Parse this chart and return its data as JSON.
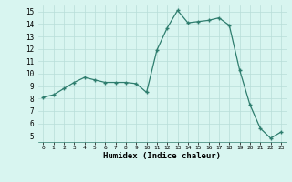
{
  "x": [
    0,
    1,
    2,
    3,
    4,
    5,
    6,
    7,
    8,
    9,
    10,
    11,
    12,
    13,
    14,
    15,
    16,
    17,
    18,
    19,
    20,
    21,
    22,
    23
  ],
  "y": [
    8.1,
    8.3,
    8.8,
    9.3,
    9.7,
    9.5,
    9.3,
    9.3,
    9.3,
    9.2,
    8.5,
    11.9,
    13.7,
    15.1,
    14.1,
    14.2,
    14.3,
    14.5,
    13.9,
    10.3,
    7.5,
    5.6,
    4.8,
    5.3
  ],
  "xlim": [
    -0.5,
    23.5
  ],
  "ylim": [
    4.5,
    15.5
  ],
  "yticks": [
    5,
    6,
    7,
    8,
    9,
    10,
    11,
    12,
    13,
    14,
    15
  ],
  "xticks": [
    0,
    1,
    2,
    3,
    4,
    5,
    6,
    7,
    8,
    9,
    10,
    11,
    12,
    13,
    14,
    15,
    16,
    17,
    18,
    19,
    20,
    21,
    22,
    23
  ],
  "xlabel": "Humidex (Indice chaleur)",
  "line_color": "#2e7d6e",
  "marker_color": "#2e7d6e",
  "bg_color": "#d8f5f0",
  "grid_color": "#b8ddd8",
  "grid_major_color": "#c8e8e0"
}
